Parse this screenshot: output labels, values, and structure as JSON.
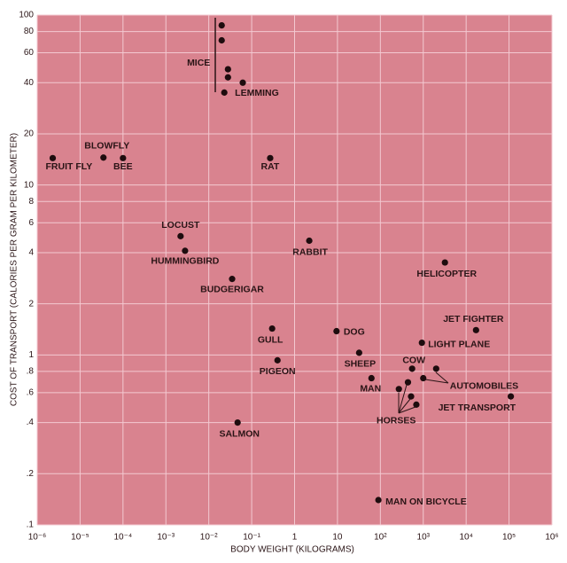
{
  "chart_data": {
    "type": "scatter",
    "xlabel": "BODY WEIGHT (KILOGRAMS)",
    "ylabel": "COST OF TRANSPORT (CALORIES PER GRAM PER KILOMETER)",
    "x": [
      0.02,
      0.02,
      0.028,
      0.028,
      0.062,
      0.023,
      2.3e-06,
      3.5e-05,
      0.0001,
      0.27,
      0.0022,
      0.0028,
      0.035,
      2.2,
      3200,
      17000,
      930,
      0.3,
      9.5,
      32,
      0.4,
      550,
      2000,
      1000,
      62,
      440,
      270,
      520,
      690,
      110000,
      0.047,
      90
    ],
    "values": [
      87,
      71,
      48,
      43,
      40,
      35,
      14.4,
      14.5,
      14.4,
      14.4,
      5.0,
      4.1,
      2.8,
      4.7,
      3.5,
      1.4,
      1.18,
      1.43,
      1.38,
      1.03,
      0.93,
      0.83,
      0.83,
      0.73,
      0.73,
      0.69,
      0.63,
      0.57,
      0.51,
      0.57,
      0.4,
      0.14
    ],
    "point_labels": [
      null,
      null,
      "MICE",
      null,
      null,
      "LEMMING",
      "FRUIT FLY",
      "BLOWFLY",
      "BEE",
      "RAT",
      "LOCUST",
      "HUMMINGBIRD",
      "BUDGERIGAR",
      "RABBIT",
      "HELICOPTER",
      "JET FIGHTER",
      "LIGHT PLANE",
      "GULL",
      "DOG",
      "SHEEP",
      "PIGEON",
      "COW",
      null,
      "AUTOMOBILES",
      "MAN",
      null,
      "HORSES",
      null,
      null,
      "JET TRANSPORT",
      "SALMON",
      "MAN ON BICYCLE"
    ],
    "color": "#1e0c0e",
    "xlim": [
      1e-06,
      1000000
    ],
    "ylim": [
      0.1,
      100
    ],
    "log_x": true,
    "log_y": true,
    "grid": true,
    "xticks": [
      {
        "value": 1e-06,
        "label": "10⁻⁶"
      },
      {
        "value": 1e-05,
        "label": "10⁻⁵"
      },
      {
        "value": 0.0001,
        "label": "10⁻⁴"
      },
      {
        "value": 0.001,
        "label": "10⁻³"
      },
      {
        "value": 0.01,
        "label": "10⁻²"
      },
      {
        "value": 0.1,
        "label": "10⁻¹"
      },
      1,
      10,
      {
        "value": 100,
        "label": "10²"
      },
      {
        "value": 1000,
        "label": "10³"
      },
      {
        "value": 10000,
        "label": "10⁴"
      },
      {
        "value": 100000,
        "label": "10⁵"
      },
      {
        "value": 1000000,
        "label": "10⁶"
      }
    ],
    "yticks": [
      {
        "value": 0.1,
        "label": ".1"
      },
      {
        "value": 0.2,
        "label": ".2"
      },
      {
        "value": 0.4,
        "label": ".4"
      },
      {
        "value": 0.6,
        "label": ".6"
      },
      {
        "value": 0.8,
        "label": ".8"
      },
      1,
      2,
      4,
      6,
      8,
      10,
      20,
      40,
      60,
      80,
      100
    ]
  }
}
